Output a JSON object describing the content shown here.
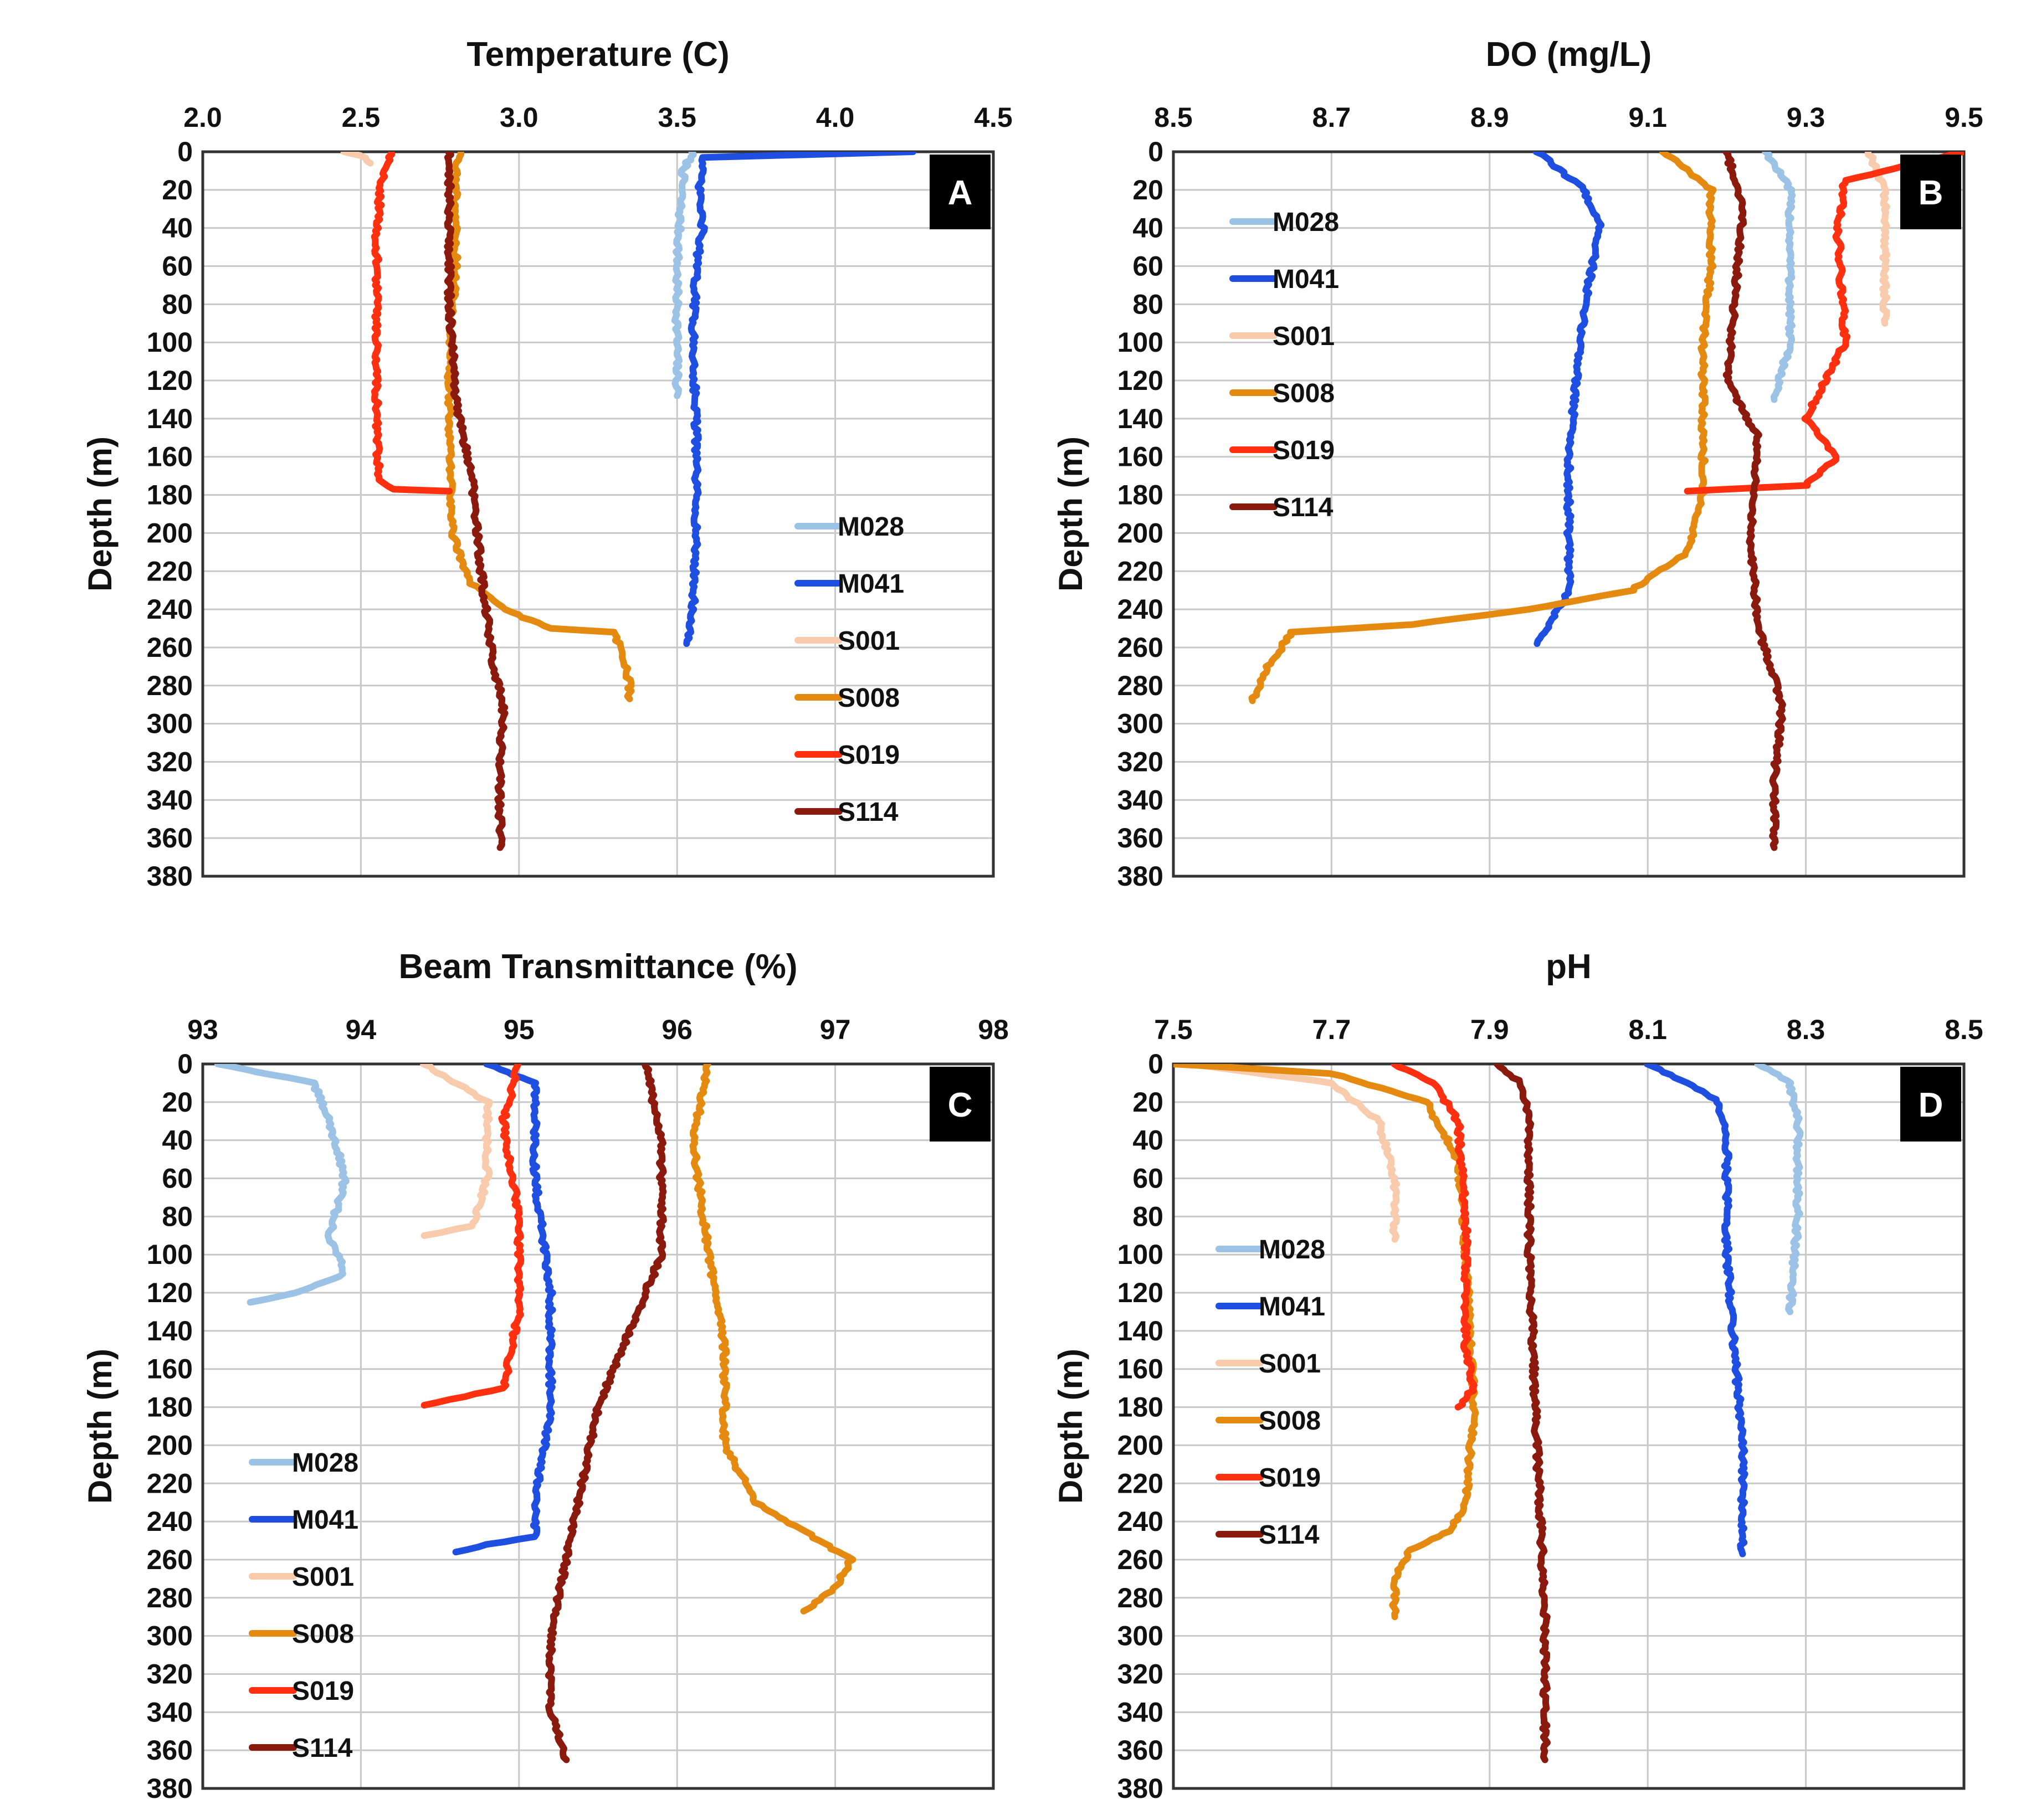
{
  "chart_data": [
    {
      "type": "line",
      "panel": "A",
      "title": "Temperature (C)",
      "xlabel": "Temperature (C)",
      "ylabel": "Depth (m)",
      "xlim": [
        2.0,
        4.5
      ],
      "ylim": [
        380,
        0
      ],
      "x_ticks": [
        "2.0",
        "2.5",
        "3.0",
        "3.5",
        "4.0",
        "4.5"
      ],
      "y_ticks": [
        "0",
        "20",
        "40",
        "60",
        "80",
        "100",
        "120",
        "140",
        "160",
        "180",
        "200",
        "220",
        "240",
        "260",
        "280",
        "300",
        "320",
        "340",
        "360",
        "380"
      ],
      "grid": true,
      "legend_position": "lower-right",
      "series": [
        {
          "name": "M028",
          "color": "#9cc3e6",
          "points": [
            [
              3.55,
              0
            ],
            [
              3.52,
              10
            ],
            [
              3.51,
              30
            ],
            [
              3.5,
              60
            ],
            [
              3.5,
              90
            ],
            [
              3.5,
              120
            ],
            [
              3.5,
              128
            ]
          ]
        },
        {
          "name": "M041",
          "color": "#1f4fe0",
          "points": [
            [
              4.25,
              0
            ],
            [
              3.58,
              3
            ],
            [
              3.57,
              20
            ],
            [
              3.58,
              40
            ],
            [
              3.56,
              60
            ],
            [
              3.55,
              100
            ],
            [
              3.56,
              140
            ],
            [
              3.56,
              200
            ],
            [
              3.55,
              240
            ],
            [
              3.53,
              258
            ]
          ]
        },
        {
          "name": "S001",
          "color": "#f8cbad",
          "points": [
            [
              2.45,
              0
            ],
            [
              2.5,
              2
            ],
            [
              2.53,
              6
            ]
          ]
        },
        {
          "name": "S008",
          "color": "#e58a10",
          "points": [
            [
              2.82,
              0
            ],
            [
              2.8,
              10
            ],
            [
              2.8,
              60
            ],
            [
              2.78,
              100
            ],
            [
              2.78,
              150
            ],
            [
              2.79,
              200
            ],
            [
              2.84,
              225
            ],
            [
              2.95,
              240
            ],
            [
              3.1,
              250
            ],
            [
              3.3,
              252
            ],
            [
              3.33,
              265
            ],
            [
              3.35,
              280
            ],
            [
              3.35,
              287
            ]
          ]
        },
        {
          "name": "S019",
          "color": "#ff3010",
          "points": [
            [
              2.6,
              0
            ],
            [
              2.57,
              10
            ],
            [
              2.55,
              40
            ],
            [
              2.55,
              100
            ],
            [
              2.55,
              150
            ],
            [
              2.56,
              172
            ],
            [
              2.6,
              177
            ],
            [
              2.78,
              178
            ]
          ]
        },
        {
          "name": "S114",
          "color": "#8b1a0e",
          "points": [
            [
              2.78,
              0
            ],
            [
              2.78,
              30
            ],
            [
              2.78,
              80
            ],
            [
              2.8,
              130
            ],
            [
              2.85,
              170
            ],
            [
              2.88,
              220
            ],
            [
              2.92,
              270
            ],
            [
              2.95,
              290
            ],
            [
              2.94,
              320
            ],
            [
              2.94,
              365
            ]
          ]
        }
      ]
    },
    {
      "type": "line",
      "panel": "B",
      "title": "DO (mg/L)",
      "xlabel": "DO (mg/L)",
      "ylabel": "Depth (m)",
      "xlim": [
        8.5,
        9.5
      ],
      "ylim": [
        380,
        0
      ],
      "x_ticks": [
        "8.5",
        "8.7",
        "8.9",
        "9.1",
        "9.3",
        "9.5"
      ],
      "y_ticks": [
        "0",
        "20",
        "40",
        "60",
        "80",
        "100",
        "120",
        "140",
        "160",
        "180",
        "200",
        "220",
        "240",
        "260",
        "280",
        "300",
        "320",
        "340",
        "360",
        "380"
      ],
      "grid": true,
      "legend_position": "upper-left",
      "series": [
        {
          "name": "M028",
          "color": "#9cc3e6",
          "points": [
            [
              9.25,
              0
            ],
            [
              9.28,
              20
            ],
            [
              9.28,
              60
            ],
            [
              9.28,
              100
            ],
            [
              9.26,
              130
            ]
          ]
        },
        {
          "name": "M041",
          "color": "#1f4fe0",
          "points": [
            [
              8.96,
              0
            ],
            [
              9.02,
              20
            ],
            [
              9.04,
              40
            ],
            [
              9.02,
              80
            ],
            [
              9.01,
              120
            ],
            [
              9.0,
              160
            ],
            [
              9.0,
              200
            ],
            [
              9.0,
              230
            ],
            [
              8.98,
              245
            ],
            [
              8.96,
              258
            ]
          ]
        },
        {
          "name": "S001",
          "color": "#f8cbad",
          "points": [
            [
              9.38,
              0
            ],
            [
              9.4,
              20
            ],
            [
              9.4,
              60
            ],
            [
              9.4,
              90
            ]
          ]
        },
        {
          "name": "S008",
          "color": "#e58a10",
          "points": [
            [
              9.12,
              0
            ],
            [
              9.18,
              20
            ],
            [
              9.18,
              60
            ],
            [
              9.17,
              100
            ],
            [
              9.17,
              150
            ],
            [
              9.17,
              180
            ],
            [
              9.15,
              210
            ],
            [
              9.08,
              230
            ],
            [
              8.95,
              240
            ],
            [
              8.8,
              248
            ],
            [
              8.65,
              252
            ],
            [
              8.62,
              270
            ],
            [
              8.6,
              288
            ]
          ]
        },
        {
          "name": "S019",
          "color": "#ff3010",
          "points": [
            [
              9.5,
              0
            ],
            [
              9.35,
              15
            ],
            [
              9.34,
              40
            ],
            [
              9.35,
              100
            ],
            [
              9.3,
              140
            ],
            [
              9.34,
              160
            ],
            [
              9.3,
              175
            ],
            [
              9.15,
              178
            ]
          ]
        },
        {
          "name": "S114",
          "color": "#8b1a0e",
          "points": [
            [
              9.2,
              0
            ],
            [
              9.22,
              30
            ],
            [
              9.21,
              80
            ],
            [
              9.2,
              120
            ],
            [
              9.24,
              150
            ],
            [
              9.23,
              200
            ],
            [
              9.24,
              250
            ],
            [
              9.27,
              290
            ],
            [
              9.26,
              330
            ],
            [
              9.26,
              365
            ]
          ]
        }
      ]
    },
    {
      "type": "line",
      "panel": "C",
      "title": "Beam Transmittance (%)",
      "xlabel": "Beam Transmittance (%)",
      "ylabel": "Depth (m)",
      "xlim": [
        93,
        98
      ],
      "ylim": [
        380,
        0
      ],
      "x_ticks": [
        "93",
        "94",
        "95",
        "96",
        "97",
        "98"
      ],
      "y_ticks": [
        "0",
        "20",
        "40",
        "60",
        "80",
        "100",
        "120",
        "140",
        "160",
        "180",
        "200",
        "220",
        "240",
        "260",
        "280",
        "300",
        "320",
        "340",
        "360",
        "380"
      ],
      "grid": true,
      "legend_position": "lower-left",
      "series": [
        {
          "name": "M028",
          "color": "#9cc3e6",
          "points": [
            [
              93.1,
              0
            ],
            [
              93.7,
              10
            ],
            [
              93.8,
              30
            ],
            [
              93.9,
              60
            ],
            [
              93.8,
              90
            ],
            [
              93.9,
              110
            ],
            [
              93.6,
              120
            ],
            [
              93.3,
              125
            ]
          ]
        },
        {
          "name": "M041",
          "color": "#1f4fe0",
          "points": [
            [
              94.8,
              0
            ],
            [
              95.1,
              10
            ],
            [
              95.1,
              60
            ],
            [
              95.2,
              120
            ],
            [
              95.2,
              180
            ],
            [
              95.1,
              230
            ],
            [
              95.1,
              248
            ],
            [
              94.8,
              252
            ],
            [
              94.6,
              256
            ]
          ]
        },
        {
          "name": "S001",
          "color": "#f8cbad",
          "points": [
            [
              94.4,
              0
            ],
            [
              94.8,
              20
            ],
            [
              94.8,
              60
            ],
            [
              94.7,
              85
            ],
            [
              94.4,
              90
            ]
          ]
        },
        {
          "name": "S008",
          "color": "#e58a10",
          "points": [
            [
              96.2,
              0
            ],
            [
              96.1,
              40
            ],
            [
              96.2,
              100
            ],
            [
              96.3,
              150
            ],
            [
              96.3,
              200
            ],
            [
              96.5,
              230
            ],
            [
              96.9,
              250
            ],
            [
              97.1,
              260
            ],
            [
              97.0,
              275
            ],
            [
              96.8,
              287
            ]
          ]
        },
        {
          "name": "S019",
          "color": "#ff3010",
          "points": [
            [
              95.0,
              0
            ],
            [
              94.9,
              30
            ],
            [
              95.0,
              80
            ],
            [
              95.0,
              130
            ],
            [
              94.9,
              170
            ],
            [
              94.4,
              179
            ]
          ]
        },
        {
          "name": "S114",
          "color": "#8b1a0e",
          "points": [
            [
              95.8,
              0
            ],
            [
              95.9,
              40
            ],
            [
              95.9,
              100
            ],
            [
              95.7,
              140
            ],
            [
              95.5,
              180
            ],
            [
              95.4,
              220
            ],
            [
              95.3,
              260
            ],
            [
              95.2,
              300
            ],
            [
              95.2,
              340
            ],
            [
              95.3,
              365
            ]
          ]
        }
      ]
    },
    {
      "type": "line",
      "panel": "D",
      "title": "pH",
      "xlabel": "pH",
      "ylabel": "Depth (m)",
      "xlim": [
        7.5,
        8.5
      ],
      "ylim": [
        380,
        0
      ],
      "x_ticks": [
        "7.5",
        "7.7",
        "7.9",
        "8.1",
        "8.3",
        "8.5"
      ],
      "y_ticks": [
        "0",
        "20",
        "40",
        "60",
        "80",
        "100",
        "120",
        "140",
        "160",
        "180",
        "200",
        "220",
        "240",
        "260",
        "280",
        "300",
        "320",
        "340",
        "360",
        "380"
      ],
      "grid": true,
      "legend_position": "lower-left",
      "series": [
        {
          "name": "M028",
          "color": "#9cc3e6",
          "points": [
            [
              8.24,
              0
            ],
            [
              8.28,
              10
            ],
            [
              8.29,
              30
            ],
            [
              8.29,
              80
            ],
            [
              8.28,
              130
            ]
          ]
        },
        {
          "name": "M041",
          "color": "#1f4fe0",
          "points": [
            [
              8.1,
              0
            ],
            [
              8.15,
              10
            ],
            [
              8.19,
              20
            ],
            [
              8.2,
              40
            ],
            [
              8.2,
              100
            ],
            [
              8.21,
              150
            ],
            [
              8.22,
              200
            ],
            [
              8.22,
              257
            ]
          ]
        },
        {
          "name": "S001",
          "color": "#f8cbad",
          "points": [
            [
              7.52,
              0
            ],
            [
              7.7,
              10
            ],
            [
              7.76,
              30
            ],
            [
              7.78,
              60
            ],
            [
              7.78,
              92
            ]
          ]
        },
        {
          "name": "S008",
          "color": "#e58a10",
          "points": [
            [
              7.5,
              0
            ],
            [
              7.7,
              5
            ],
            [
              7.82,
              20
            ],
            [
              7.86,
              50
            ],
            [
              7.87,
              100
            ],
            [
              7.88,
              180
            ],
            [
              7.87,
              230
            ],
            [
              7.85,
              245
            ],
            [
              7.8,
              255
            ],
            [
              7.78,
              270
            ],
            [
              7.78,
              290
            ]
          ]
        },
        {
          "name": "S019",
          "color": "#ff3010",
          "points": [
            [
              7.78,
              0
            ],
            [
              7.83,
              10
            ],
            [
              7.86,
              30
            ],
            [
              7.87,
              80
            ],
            [
              7.87,
              150
            ],
            [
              7.88,
              170
            ],
            [
              7.86,
              180
            ]
          ]
        },
        {
          "name": "S114",
          "color": "#8b1a0e",
          "points": [
            [
              7.91,
              0
            ],
            [
              7.94,
              10
            ],
            [
              7.95,
              30
            ],
            [
              7.95,
              100
            ],
            [
              7.96,
              200
            ],
            [
              7.97,
              290
            ],
            [
              7.97,
              365
            ]
          ]
        }
      ]
    }
  ]
}
